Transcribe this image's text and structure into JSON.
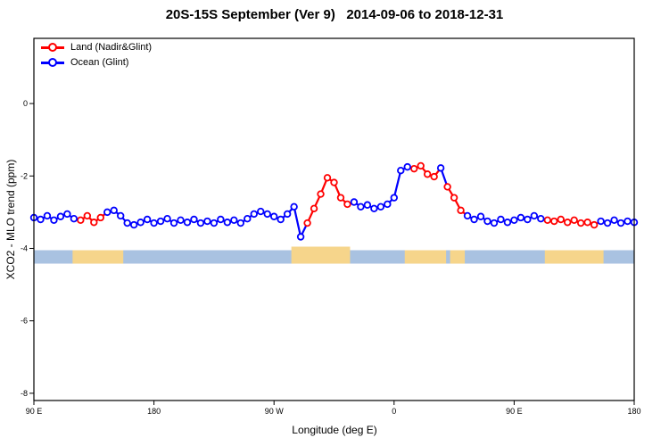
{
  "title": "20S-15S September (Ver 9)   2014-09-06 to 2018-12-31",
  "legend_position": "top-left",
  "chart_data": {
    "type": "line",
    "title": "20S-15S September (Ver 9)   2014-09-06 to 2018-12-31",
    "xlabel": "Longitude (deg E)",
    "ylabel": "XCO2 - MLO trend (ppm)",
    "xlim": [
      90,
      540
    ],
    "ylim": [
      -8.2,
      1.8
    ],
    "grid": "off",
    "xticks": [
      {
        "value": 90,
        "label": "90 E"
      },
      {
        "value": 180,
        "label": "180"
      },
      {
        "value": 270,
        "label": "90 W"
      },
      {
        "value": 360,
        "label": "0"
      },
      {
        "value": 450,
        "label": "90 E"
      },
      {
        "value": 540,
        "label": "180"
      }
    ],
    "yticks": [
      {
        "value": 0,
        "label": "0"
      },
      {
        "value": -2,
        "label": "-2"
      },
      {
        "value": -4,
        "label": "-4"
      },
      {
        "value": -6,
        "label": "-6"
      },
      {
        "value": -8,
        "label": "-8"
      }
    ],
    "series": [
      {
        "name": "Land (Nadir&Glint)",
        "color": "#FF0000",
        "marker": "open-circle",
        "x": [
          125,
          130,
          135,
          140,
          295,
          300,
          305,
          310,
          315,
          320,
          325,
          375,
          380,
          385,
          390,
          400,
          405,
          410,
          475,
          480,
          485,
          490,
          495,
          500,
          505,
          510
        ],
        "y": [
          -3.22,
          -3.1,
          -3.28,
          -3.15,
          -3.3,
          -2.9,
          -2.5,
          -2.05,
          -2.18,
          -2.6,
          -2.78,
          -1.8,
          -1.72,
          -1.95,
          -2.02,
          -2.3,
          -2.6,
          -2.95,
          -3.22,
          -3.25,
          -3.2,
          -3.28,
          -3.22,
          -3.3,
          -3.28,
          -3.35
        ]
      },
      {
        "name": "Ocean (Glint)",
        "color": "#0000FF",
        "marker": "open-circle",
        "x": [
          90,
          95,
          100,
          105,
          110,
          115,
          120,
          145,
          150,
          155,
          160,
          165,
          170,
          175,
          180,
          185,
          190,
          195,
          200,
          205,
          210,
          215,
          220,
          225,
          230,
          235,
          240,
          245,
          250,
          255,
          260,
          265,
          270,
          275,
          280,
          285,
          290,
          330,
          335,
          340,
          345,
          350,
          355,
          360,
          365,
          370,
          395,
          415,
          420,
          425,
          430,
          435,
          440,
          445,
          450,
          455,
          460,
          465,
          470,
          515,
          520,
          525,
          530,
          535,
          540
        ],
        "y": [
          -3.15,
          -3.2,
          -3.1,
          -3.22,
          -3.12,
          -3.05,
          -3.18,
          -3.0,
          -2.95,
          -3.1,
          -3.3,
          -3.35,
          -3.28,
          -3.2,
          -3.3,
          -3.25,
          -3.18,
          -3.3,
          -3.22,
          -3.28,
          -3.2,
          -3.3,
          -3.25,
          -3.3,
          -3.2,
          -3.28,
          -3.22,
          -3.3,
          -3.18,
          -3.05,
          -2.98,
          -3.05,
          -3.12,
          -3.2,
          -3.05,
          -2.85,
          -3.68,
          -2.72,
          -2.85,
          -2.8,
          -2.9,
          -2.85,
          -2.78,
          -2.6,
          -1.85,
          -1.75,
          -1.78,
          -3.1,
          -3.2,
          -3.12,
          -3.25,
          -3.3,
          -3.2,
          -3.28,
          -3.22,
          -3.15,
          -3.2,
          -3.1,
          -3.18,
          -3.25,
          -3.3,
          -3.22,
          -3.3,
          -3.25,
          -3.28
        ]
      }
    ],
    "map_strip": {
      "y_top": -4.05,
      "y_bottom": -4.42,
      "ocean_color": "#a9c2e1",
      "land_color": "#f6d58b",
      "land_spans": [
        {
          "from": 119,
          "to": 157
        },
        {
          "from": 283,
          "to": 327,
          "tall": true
        },
        {
          "from": 368,
          "to": 399
        },
        {
          "from": 402,
          "to": 413
        },
        {
          "from": 473,
          "to": 517
        }
      ]
    }
  }
}
